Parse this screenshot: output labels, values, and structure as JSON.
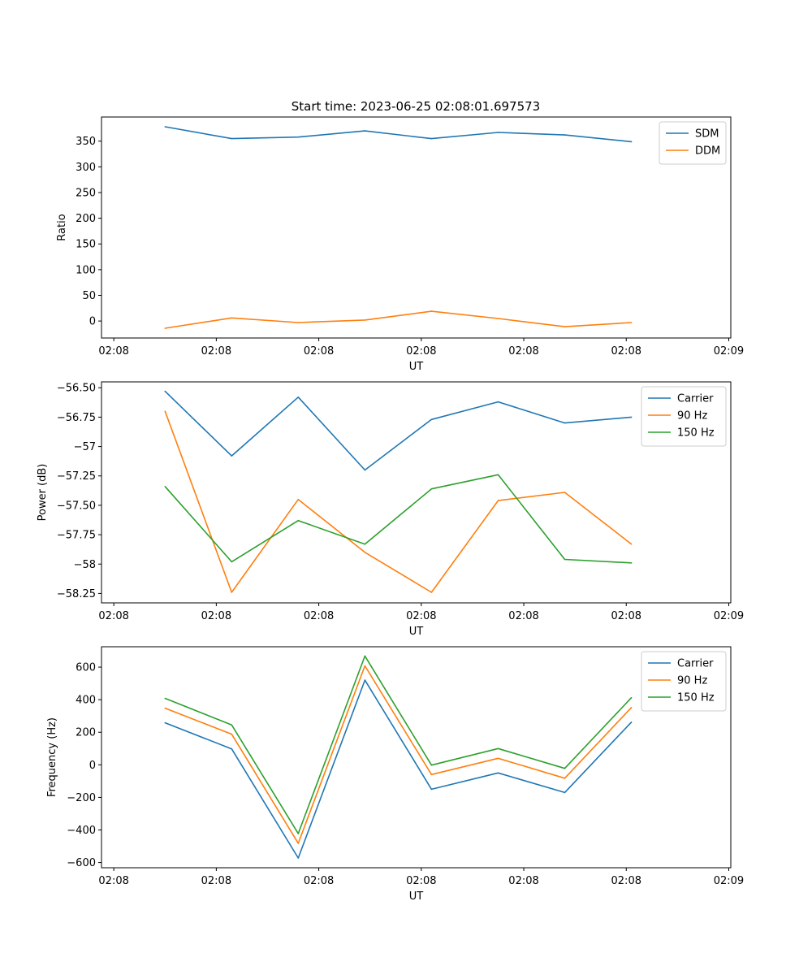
{
  "figure": {
    "title": "Start time: 2023-06-25 02:08:01.697573"
  },
  "chart_data": [
    {
      "type": "line",
      "title": "Start time: 2023-06-25 02:08:01.697573",
      "xlabel": "UT",
      "ylabel": "Ratio",
      "x_tick_labels": [
        "02:08",
        "02:08",
        "02:08",
        "02:08",
        "02:08",
        "02:08",
        "02:09"
      ],
      "x_ticks": [
        0,
        10,
        20,
        30,
        40,
        50,
        60
      ],
      "x": [
        5,
        11.5,
        18,
        24.5,
        31,
        37.5,
        44,
        50.5
      ],
      "xlim": [
        -1.2,
        60.2
      ],
      "ylim": [
        -33,
        397
      ],
      "y_ticks": [
        0,
        50,
        100,
        150,
        200,
        250,
        300,
        350
      ],
      "legend": "top-right",
      "series": [
        {
          "name": "SDM",
          "color": "#1f77b4",
          "values": [
            378,
            355,
            358,
            370,
            355,
            367,
            362,
            349
          ]
        },
        {
          "name": "DDM",
          "color": "#ff7f0e",
          "values": [
            -14,
            6,
            -3,
            2,
            19,
            5,
            -11,
            -3
          ]
        }
      ]
    },
    {
      "type": "line",
      "xlabel": "UT",
      "ylabel": "Power (dB)",
      "x_tick_labels": [
        "02:08",
        "02:08",
        "02:08",
        "02:08",
        "02:08",
        "02:08",
        "02:09"
      ],
      "x_ticks": [
        0,
        10,
        20,
        30,
        40,
        50,
        60
      ],
      "x": [
        5,
        11.5,
        18,
        24.5,
        31,
        37.5,
        44,
        50.5
      ],
      "xlim": [
        -1.2,
        60.2
      ],
      "ylim": [
        -58.33,
        -56.45
      ],
      "y_ticks": [
        -58.25,
        -58.0,
        -57.75,
        -57.5,
        -57.25,
        -57.0,
        -56.75,
        -56.5
      ],
      "legend": "top-right",
      "series": [
        {
          "name": "Carrier",
          "color": "#1f77b4",
          "values": [
            -56.53,
            -57.08,
            -56.58,
            -57.2,
            -56.77,
            -56.62,
            -56.8,
            -56.75
          ]
        },
        {
          "name": "90 Hz",
          "color": "#ff7f0e",
          "values": [
            -56.7,
            -58.24,
            -57.45,
            -57.9,
            -58.24,
            -57.46,
            -57.39,
            -57.83
          ]
        },
        {
          "name": "150 Hz",
          "color": "#2ca02c",
          "values": [
            -57.34,
            -57.98,
            -57.63,
            -57.83,
            -57.36,
            -57.24,
            -57.96,
            -57.99
          ]
        }
      ]
    },
    {
      "type": "line",
      "xlabel": "UT",
      "ylabel": "Frequency (Hz)",
      "x_tick_labels": [
        "02:08",
        "02:08",
        "02:08",
        "02:08",
        "02:08",
        "02:08",
        "02:09"
      ],
      "x_ticks": [
        0,
        10,
        20,
        30,
        40,
        50,
        60
      ],
      "x": [
        5,
        11.5,
        18,
        24.5,
        31,
        37.5,
        44,
        50.5
      ],
      "xlim": [
        -1.2,
        60.2
      ],
      "ylim": [
        -632,
        725
      ],
      "y_ticks": [
        -600,
        -400,
        -200,
        0,
        200,
        400,
        600
      ],
      "legend": "top-right",
      "series": [
        {
          "name": "Carrier",
          "color": "#1f77b4",
          "values": [
            258,
            98,
            -572,
            520,
            -150,
            -50,
            -170,
            262
          ]
        },
        {
          "name": "90 Hz",
          "color": "#ff7f0e",
          "values": [
            348,
            188,
            -482,
            608,
            -60,
            40,
            -82,
            352
          ]
        },
        {
          "name": "150 Hz",
          "color": "#2ca02c",
          "values": [
            408,
            245,
            -422,
            668,
            -2,
            100,
            -22,
            412
          ]
        }
      ]
    }
  ]
}
